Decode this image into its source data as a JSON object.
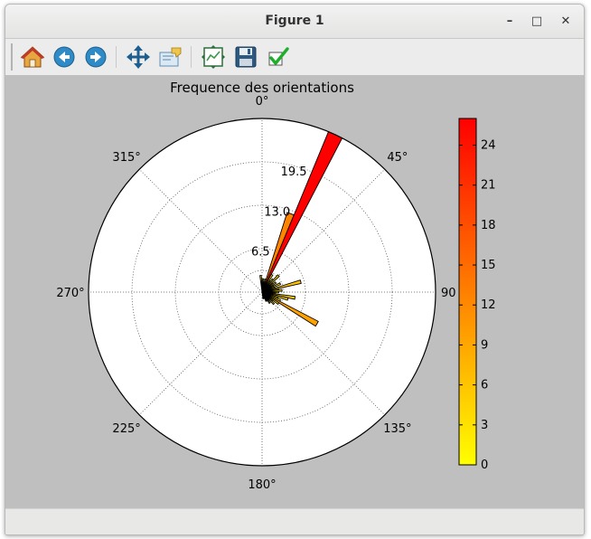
{
  "window": {
    "title": "Figure 1",
    "minimize_glyph": "–",
    "maximize_glyph": "□",
    "close_glyph": "✕"
  },
  "toolbar": {
    "buttons": [
      {
        "name": "home",
        "icon": "home-icon"
      },
      {
        "name": "back",
        "icon": "back-arrow-icon"
      },
      {
        "name": "forward",
        "icon": "forward-arrow-icon"
      },
      {
        "name": "pan",
        "icon": "pan-arrows-icon"
      },
      {
        "name": "zoom",
        "icon": "zoom-rect-icon"
      },
      {
        "name": "subplots",
        "icon": "subplots-icon"
      },
      {
        "name": "save",
        "icon": "floppy-disk-icon"
      },
      {
        "name": "edit-parameters",
        "icon": "checkmark-icon"
      }
    ]
  },
  "chart_data": {
    "type": "polar-bar",
    "title": "Frequence des orientations",
    "theta_direction": "clockwise",
    "theta_zero": "top",
    "theta_tick_labels": [
      {
        "angle": 0,
        "label": "0°"
      },
      {
        "angle": 45,
        "label": "45°"
      },
      {
        "angle": 90,
        "label": "90"
      },
      {
        "angle": 135,
        "label": "135°"
      },
      {
        "angle": 180,
        "label": "180°"
      },
      {
        "angle": 225,
        "label": "225°"
      },
      {
        "angle": 270,
        "label": "270°"
      },
      {
        "angle": 315,
        "label": "315°"
      }
    ],
    "r_ticks": [
      6.5,
      13.0,
      19.5
    ],
    "r_tick_labels": [
      "6.5",
      "13.0",
      "19.5"
    ],
    "r_max": 26,
    "grid": true,
    "bars": [
      {
        "theta": -5,
        "width": 5,
        "value": 2.5
      },
      {
        "theta": 0,
        "width": 5,
        "value": 1.5
      },
      {
        "theta": 5,
        "width": 5,
        "value": 2.0
      },
      {
        "theta": 10,
        "width": 5,
        "value": 1.5
      },
      {
        "theta": 15,
        "width": 5,
        "value": 2.0
      },
      {
        "theta": 20,
        "width": 5,
        "value": 12.5
      },
      {
        "theta": 25,
        "width": 5,
        "value": 26.0
      },
      {
        "theta": 30,
        "width": 5,
        "value": 3.0
      },
      {
        "theta": 35,
        "width": 5,
        "value": 2.0
      },
      {
        "theta": 40,
        "width": 5,
        "value": 2.5
      },
      {
        "theta": 45,
        "width": 5,
        "value": 3.5
      },
      {
        "theta": 50,
        "width": 5,
        "value": 2.0
      },
      {
        "theta": 55,
        "width": 5,
        "value": 2.5
      },
      {
        "theta": 60,
        "width": 5,
        "value": 2.0
      },
      {
        "theta": 65,
        "width": 5,
        "value": 3.0
      },
      {
        "theta": 70,
        "width": 5,
        "value": 2.0
      },
      {
        "theta": 75,
        "width": 5,
        "value": 6.0
      },
      {
        "theta": 80,
        "width": 5,
        "value": 2.5
      },
      {
        "theta": 85,
        "width": 5,
        "value": 3.0
      },
      {
        "theta": 90,
        "width": 5,
        "value": 2.5
      },
      {
        "theta": 95,
        "width": 5,
        "value": 2.0
      },
      {
        "theta": 100,
        "width": 5,
        "value": 5.0
      },
      {
        "theta": 105,
        "width": 5,
        "value": 4.0
      },
      {
        "theta": 110,
        "width": 5,
        "value": 2.5
      },
      {
        "theta": 115,
        "width": 5,
        "value": 3.0
      },
      {
        "theta": 120,
        "width": 5,
        "value": 9.5
      },
      {
        "theta": 125,
        "width": 5,
        "value": 3.0
      },
      {
        "theta": 130,
        "width": 5,
        "value": 2.0
      },
      {
        "theta": 135,
        "width": 5,
        "value": 2.5
      },
      {
        "theta": 140,
        "width": 5,
        "value": 1.5
      },
      {
        "theta": 145,
        "width": 5,
        "value": 2.0
      },
      {
        "theta": 150,
        "width": 5,
        "value": 1.5
      },
      {
        "theta": 155,
        "width": 5,
        "value": 1.5
      },
      {
        "theta": 160,
        "width": 5,
        "value": 1.0
      },
      {
        "theta": 165,
        "width": 5,
        "value": 1.0
      },
      {
        "theta": 170,
        "width": 5,
        "value": 1.0
      }
    ],
    "colorbar": {
      "ticks": [
        0,
        3,
        6,
        9,
        12,
        15,
        18,
        21,
        24
      ],
      "tick_labels": [
        "0",
        "3",
        "6",
        "9",
        "12",
        "15",
        "18",
        "21",
        "24"
      ],
      "vmin": 0,
      "vmax": 26,
      "cmap": "autumn_r",
      "color_low": "#ffff00",
      "color_high": "#ff0000"
    }
  }
}
